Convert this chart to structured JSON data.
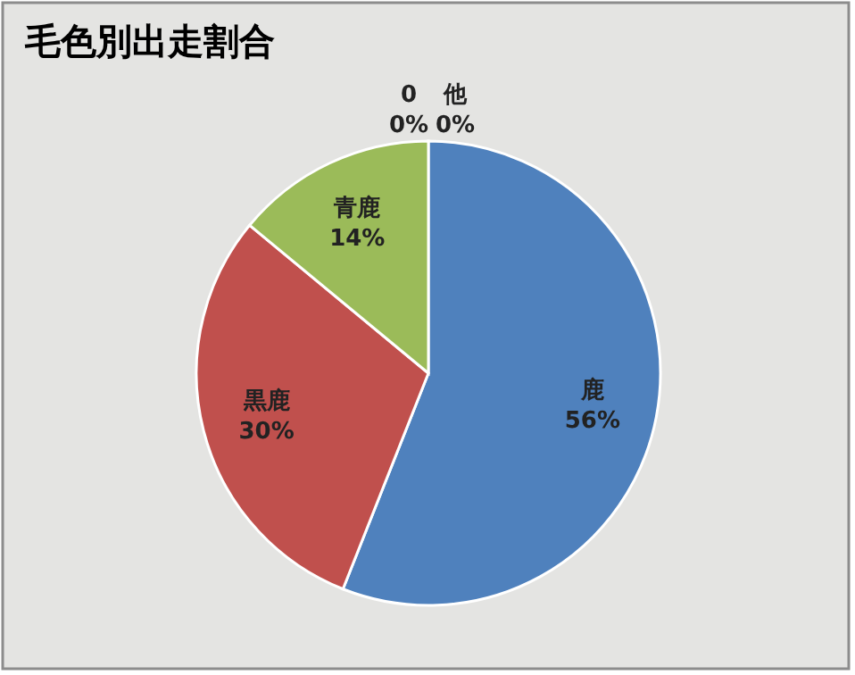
{
  "chart_data": {
    "type": "pie",
    "title": "毛色別出走割合",
    "categories": [
      "鹿",
      "黒鹿",
      "青鹿",
      "0",
      "他"
    ],
    "values": [
      56,
      30,
      14,
      0,
      0
    ],
    "colors": [
      "#4f81bd",
      "#c0504d",
      "#9bbb59",
      "#8064a2",
      "#4bacc6"
    ],
    "value_labels": [
      "56%",
      "30%",
      "14%",
      "0%",
      "0%"
    ]
  }
}
